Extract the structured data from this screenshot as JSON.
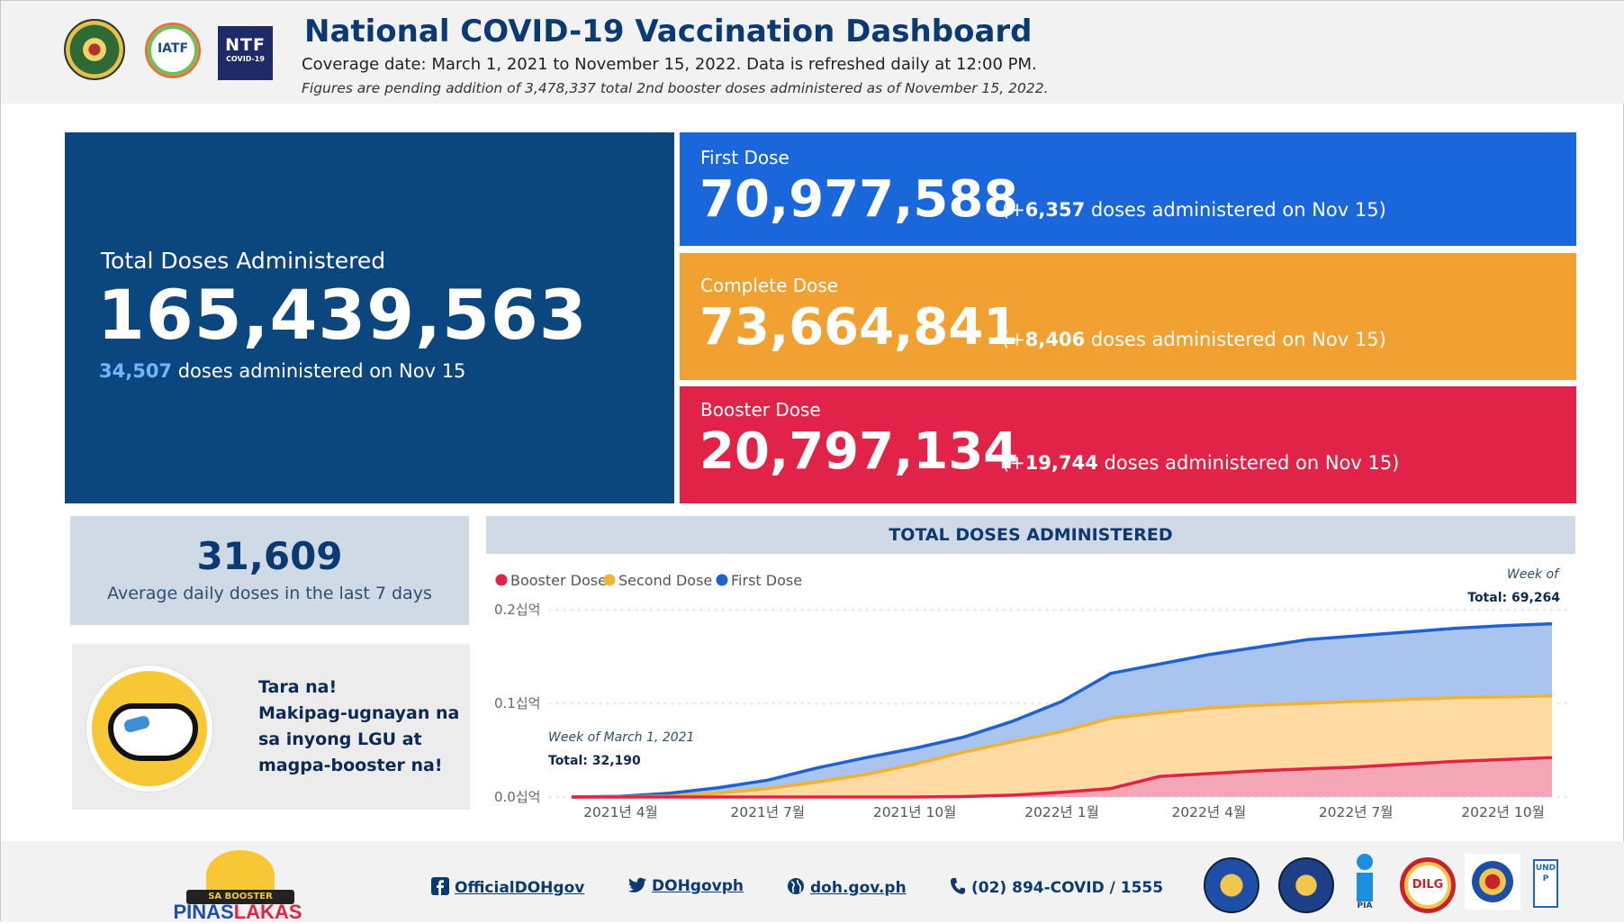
{
  "header": {
    "title": "National COVID-19 Vaccination Dashboard",
    "coverage": "Coverage date: March 1, 2021 to November 15, 2022. Data is refreshed daily at 12:00 PM.",
    "note": "Figures are pending addition of 3,478,337 total 2nd booster doses administered as of November 15, 2022.",
    "logos": {
      "iatf": "IATF",
      "ntf": "NTF",
      "ntf_sub": "COVID-19"
    }
  },
  "total": {
    "label": "Total Doses Administered",
    "value": "165,439,563",
    "daily_num": "34,507",
    "daily_text": " doses administered on Nov 15"
  },
  "first": {
    "label": "First Dose",
    "value": "70,977,588",
    "delta_pre": "(+",
    "delta": "6,357",
    "delta_post": " doses administered on Nov 15)"
  },
  "complete": {
    "label": "Complete Dose",
    "value": "73,664,841",
    "delta_pre": "(+",
    "delta": "8,406",
    "delta_post": " doses administered on Nov 15)"
  },
  "booster": {
    "label": "Booster Dose",
    "value": "20,797,134",
    "delta_pre": "(+",
    "delta": "19,744",
    "delta_post": " doses administered on Nov 15)"
  },
  "average": {
    "value": "31,609",
    "label": "Average daily doses in the last 7 days"
  },
  "promo": {
    "lines": [
      "Tara na!",
      "Makipag-ugnayan na",
      "sa inyong LGU at",
      "magpa-booster na!"
    ]
  },
  "chart_data": {
    "type": "area",
    "title": "TOTAL DOSES ADMINISTERED",
    "legend_position": "top-left",
    "legend": [
      "Booster Dose",
      "Second Dose",
      "First Dose"
    ],
    "y_ticks": [
      "0.2십억",
      "0.1십억",
      "0.0십억"
    ],
    "x_ticks": [
      "2021년 4월",
      "2021년 7월",
      "2021년 10월",
      "2022년 1월",
      "2022년 4월",
      "2022년 7월",
      "2022년 10월"
    ],
    "ylim": [
      0,
      0.2
    ],
    "y_unit": "billion doses (cumulative)",
    "x": [
      "2021-03",
      "2021-04",
      "2021-05",
      "2021-06",
      "2021-07",
      "2021-08",
      "2021-09",
      "2021-10",
      "2021-11",
      "2021-12",
      "2022-01",
      "2022-02",
      "2022-03",
      "2022-04",
      "2022-05",
      "2022-06",
      "2022-07",
      "2022-08",
      "2022-09",
      "2022-10",
      "2022-11"
    ],
    "series": [
      {
        "name": "Booster Dose",
        "values": [
          0,
          0,
          0,
          0,
          0,
          0,
          0,
          0,
          0.0005,
          0.002,
          0.005,
          0.009,
          0.022,
          0.025,
          0.028,
          0.03,
          0.032,
          0.035,
          0.038,
          0.04,
          0.042
        ]
      },
      {
        "name": "Second Dose",
        "values": [
          0,
          0.0002,
          0.001,
          0.004,
          0.009,
          0.016,
          0.024,
          0.035,
          0.048,
          0.059,
          0.07,
          0.084,
          0.09,
          0.095,
          0.098,
          0.1,
          0.102,
          0.104,
          0.106,
          0.107,
          0.108
        ]
      },
      {
        "name": "First Dose",
        "values": [
          0,
          0.0008,
          0.004,
          0.01,
          0.018,
          0.031,
          0.042,
          0.052,
          0.064,
          0.081,
          0.102,
          0.132,
          0.142,
          0.152,
          0.16,
          0.168,
          0.172,
          0.176,
          0.18,
          0.183,
          0.185
        ]
      }
    ],
    "colors": {
      "booster": "#e02346",
      "second": "#f3b331",
      "first": "#1e62d0",
      "booster_fill": "#f3a7b5",
      "second_fill": "#fddba3",
      "first_fill": "#a8c4ef"
    },
    "annotation_start": {
      "line1": "Week of March 1, 2021",
      "line2": "Total: 32,190"
    },
    "annotation_end": {
      "line1": "Week of",
      "line2": "Total: 69,264"
    }
  },
  "footer": {
    "pinas_top": "SA BOOSTER",
    "pinas_a": "PINAS",
    "pinas_b": "LAKAS",
    "facebook": "OfficialDOHgov",
    "twitter": "DOHgovph",
    "website": "doh.gov.ph",
    "phone": "(02) 894-COVID / 1555",
    "seal_pia": "PIA",
    "seal_dilg": "DILG",
    "seal_undp": "UNDP"
  }
}
